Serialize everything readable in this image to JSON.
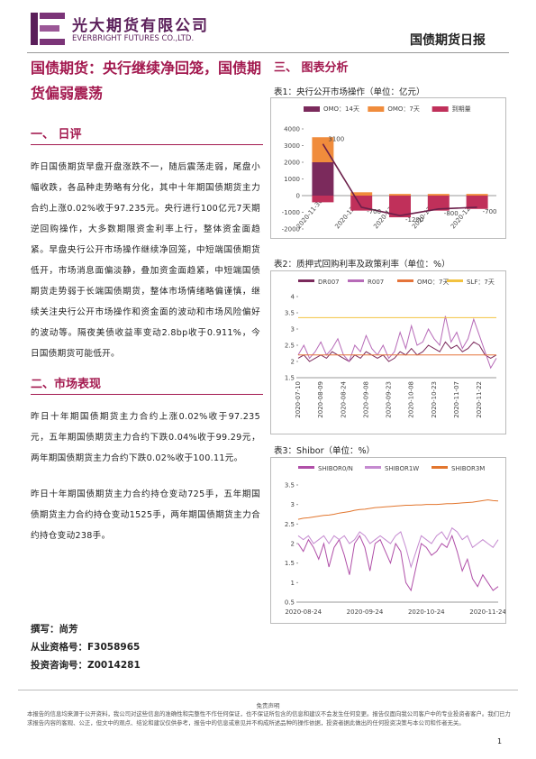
{
  "header": {
    "company_cn": "光大期货有限公司",
    "company_en": "EVERBRIGHT FUTURES CO.,LTD.",
    "report": "国债期货日报"
  },
  "article": {
    "title": "国债期货：央行继续净回笼，国债期货偏弱震荡",
    "sections": [
      {
        "heading": "一、 日评",
        "paragraphs": [
          "昨日国债期货早盘开盘涨跌不一，随后震荡走弱，尾盘小幅收跌，各品种走势略有分化，其中十年期国债期货主力合约上涨0.02%收于97.235元。央行进行100亿元7天期逆回购操作，大多数期限资金利率上行，整体资金面趋紧。早盘央行公开市场操作继续净回笼，中短端国债期货低开，市场消息面偏淡静，叠加资金面趋紧，中短端国债期货走势弱于长端国债期货，整体市场情绪略偏谨慎，继续关注央行公开市场操作和资金面的波动和市场风险偏好的波动等。隔夜美债收益率变动2.8bp收于0.911%，今日国债期货可能低开。"
        ]
      },
      {
        "heading": "二、市场表现",
        "paragraphs": [
          "昨日十年期国债期货主力合约上涨0.02%收于97.235元，五年期国债期货主力合约下跌0.04%收于99.29元，两年期国债期货主力合约下跌0.02%收于100.11元。",
          "昨日十年期国债期货主力合约持仓变动725手，五年期国债期货主力合约持仓变动1525手，两年期国债期货主力合约持仓变动238手。"
        ]
      }
    ],
    "authors": [
      "撰写：尚芳",
      "从业资格号：F3058965",
      "投资咨询号：Z0014281"
    ]
  },
  "charts_heading": "三、 图表分析",
  "disclaimer": {
    "title": "免责声明",
    "text": "本报告的信息均来源于公开资料，我公司对这些信息的准确性和完整性不作任何保证，也不保证所包含的信息和建议不会发生任何变更。报告仅面向我公司客户中的专业投资者客户。我们已力求报告内容的客观、公正，但文中的观点、结论和建议仅供参考，报告中的信息或意见并不构成所述品种的操作依据，投资者据此做出的任何投资决策与本公司和作者无关。"
  },
  "page_number": "1",
  "chart_data": [
    {
      "type": "bar",
      "title": "表1：央行公开市场操作（单位：亿元）",
      "categories": [
        "2020-11-30",
        "2020-12-01",
        "2020-12-02",
        "2020-12-03",
        "2020-12-04"
      ],
      "ylim": [
        -2000,
        4000
      ],
      "yticks": [
        -2000,
        -1000,
        0,
        1000,
        2000,
        3000,
        4000
      ],
      "grid": false,
      "series": [
        {
          "name": "OMO：14天",
          "color": "#7b2a5c",
          "type": "bar",
          "values": [
            2000,
            0,
            0,
            0,
            0
          ]
        },
        {
          "name": "OMO：7天",
          "color": "#f08c3c",
          "type": "bar",
          "values": [
            1500,
            200,
            100,
            100,
            100
          ]
        },
        {
          "name": "到期量",
          "color": "#c0305a",
          "type": "bar",
          "values": [
            -400,
            -900,
            -1300,
            -900,
            -800
          ]
        },
        {
          "color": "#6b1f4a",
          "type": "line",
          "values": [
            3100,
            -700,
            -1200,
            -800,
            -700
          ]
        }
      ]
    },
    {
      "type": "line",
      "title": "表2：质押式回购利率及政策利率（单位：%）",
      "categories": [
        "2020-07-10",
        null,
        null,
        null,
        "2020-08-09",
        null,
        null,
        null,
        "2020-08-24",
        null,
        null,
        null,
        "2020-09-08",
        null,
        null,
        null,
        "2020-09-23",
        null,
        null,
        null,
        "2020-10-08",
        null,
        null,
        null,
        "2020-10-23",
        null,
        null,
        null,
        "2020-11-07",
        null,
        null,
        null,
        "2020-11-22",
        null,
        null,
        null
      ],
      "ylim": [
        1.5,
        4
      ],
      "yticks": [
        1.5,
        2,
        2.5,
        3,
        3.5,
        4
      ],
      "grid": false,
      "series": [
        {
          "name": "DR007",
          "color": "#7b2a5c",
          "values": [
            2.1,
            2.2,
            2.0,
            2.1,
            2.2,
            2.1,
            2.3,
            2.2,
            2.1,
            2.0,
            2.2,
            2.1,
            2.3,
            2.2,
            2.1,
            2.2,
            2.0,
            2.1,
            2.3,
            2.2,
            2.4,
            2.2,
            2.3,
            2.5,
            2.4,
            2.3,
            2.6,
            2.4,
            2.5,
            2.3,
            2.4,
            2.6,
            2.5,
            2.2,
            2.1,
            2.2
          ]
        },
        {
          "name": "R007",
          "color": "#b76bb8",
          "values": [
            2.2,
            2.5,
            2.1,
            2.3,
            2.6,
            2.2,
            2.4,
            2.7,
            2.2,
            2.0,
            2.5,
            2.3,
            2.8,
            2.4,
            2.2,
            2.5,
            2.1,
            2.3,
            2.9,
            2.4,
            3.1,
            2.5,
            2.6,
            3.0,
            2.7,
            2.5,
            3.4,
            2.6,
            2.9,
            2.4,
            2.7,
            3.3,
            2.8,
            2.3,
            1.8,
            2.1
          ]
        },
        {
          "name": "OMO：7天",
          "color": "#e5743a",
          "values": [
            2.2,
            2.2,
            2.2,
            2.2,
            2.2,
            2.2,
            2.2,
            2.2,
            2.2,
            2.2,
            2.2,
            2.2,
            2.2,
            2.2,
            2.2,
            2.2,
            2.2,
            2.2,
            2.2,
            2.2,
            2.2,
            2.2,
            2.2,
            2.2,
            2.2,
            2.2,
            2.2,
            2.2,
            2.2,
            2.2,
            2.2,
            2.2,
            2.2,
            2.2,
            2.2,
            2.2
          ]
        },
        {
          "name": "SLF：7天",
          "color": "#f2c240",
          "values": [
            3.35,
            3.35,
            3.35,
            3.35,
            3.35,
            3.35,
            3.35,
            3.35,
            3.35,
            3.35,
            3.35,
            3.35,
            3.35,
            3.35,
            3.35,
            3.35,
            3.35,
            3.35,
            3.35,
            3.35,
            3.35,
            3.35,
            3.35,
            3.35,
            3.35,
            3.35,
            3.35,
            3.35,
            3.35,
            3.35,
            3.35,
            3.35,
            3.35,
            3.35,
            3.35,
            3.35
          ]
        }
      ]
    },
    {
      "type": "line",
      "title": "表3：Shibor（单位：%）",
      "categories": [
        null,
        "2020-08-24",
        null,
        null,
        null,
        null,
        null,
        null,
        null,
        null,
        null,
        null,
        null,
        "2020-09-24",
        null,
        null,
        null,
        null,
        null,
        null,
        null,
        null,
        null,
        null,
        null,
        "2020-10-24",
        null,
        null,
        null,
        null,
        null,
        null,
        null,
        null,
        null,
        null,
        null,
        "2020-11-24",
        null,
        null
      ],
      "ylim": [
        0.5,
        3.5
      ],
      "yticks": [
        0.5,
        1,
        1.5,
        2,
        2.5,
        3,
        3.5
      ],
      "grid": false,
      "xlabels_horizontal": true,
      "series": [
        {
          "name": "SHIBOR0/N",
          "color": "#b04fa8",
          "values": [
            2.0,
            1.8,
            2.1,
            1.9,
            1.6,
            2.0,
            1.4,
            1.9,
            2.1,
            1.7,
            1.2,
            2.0,
            2.2,
            1.9,
            1.3,
            2.0,
            2.1,
            1.8,
            1.5,
            2.0,
            1.8,
            1.0,
            0.8,
            1.4,
            2.0,
            1.9,
            1.7,
            1.8,
            2.0,
            1.9,
            2.2,
            1.8,
            1.3,
            1.6,
            1.1,
            0.9,
            1.2,
            1.0,
            0.8,
            0.9
          ]
        },
        {
          "name": "SHIBOR1W",
          "color": "#c58ad0",
          "values": [
            2.2,
            2.1,
            2.2,
            2.0,
            2.1,
            2.2,
            2.0,
            2.2,
            2.1,
            2.2,
            2.0,
            2.1,
            2.3,
            2.2,
            2.0,
            2.1,
            2.2,
            2.1,
            2.0,
            2.2,
            2.3,
            1.9,
            1.4,
            1.8,
            2.2,
            2.1,
            2.0,
            2.2,
            2.3,
            2.1,
            2.4,
            2.3,
            2.1,
            2.2,
            1.9,
            2.0,
            2.1,
            2.0,
            1.9,
            2.1
          ]
        },
        {
          "name": "SHIBOR3M",
          "color": "#e2762e",
          "values": [
            2.62,
            2.65,
            2.66,
            2.68,
            2.7,
            2.72,
            2.73,
            2.75,
            2.78,
            2.8,
            2.82,
            2.85,
            2.87,
            2.88,
            2.9,
            2.92,
            2.93,
            2.94,
            2.95,
            2.96,
            2.97,
            2.98,
            2.98,
            2.99,
            2.99,
            3.0,
            3.0,
            3.0,
            3.01,
            3.02,
            3.02,
            3.03,
            3.04,
            3.05,
            3.06,
            3.08,
            3.1,
            3.12,
            3.1,
            3.09
          ]
        }
      ]
    }
  ]
}
